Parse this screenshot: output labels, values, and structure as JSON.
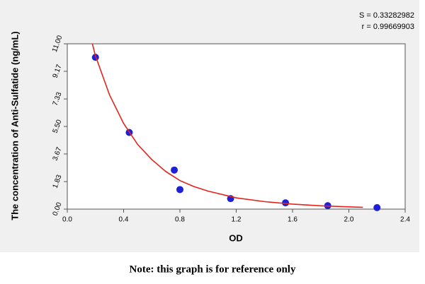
{
  "chart_data": {
    "type": "scatter",
    "x_label": "OD",
    "y_label": "The concentration of Anti-Sulfatide (ng/mL)",
    "annotations": [
      "S = 0.33282982",
      "r = 0.99669903"
    ],
    "xlim": [
      0,
      2.4
    ],
    "ylim": [
      0,
      11
    ],
    "xticks": [
      {
        "value": 0,
        "label": "0.0"
      },
      0.4,
      0.8,
      1.2,
      1.6,
      {
        "value": 2,
        "label": "2.0"
      },
      2.4
    ],
    "yticks": [
      {
        "value": 0,
        "label": "0.00"
      },
      1.83,
      3.67,
      {
        "value": 5.5,
        "label": "5.50"
      },
      7.33,
      9.17,
      {
        "value": 11,
        "label": "11.00"
      }
    ],
    "grid": false,
    "series": [
      {
        "mode": "markers",
        "color": "#1f1fd6",
        "x": [
          0.2,
          0.44,
          0.76,
          0.8,
          1.16,
          1.55,
          1.85,
          2.2
        ],
        "values": [
          10.1,
          5.1,
          2.6,
          1.3,
          0.7,
          0.42,
          0.23,
          0.1
        ]
      },
      {
        "mode": "line",
        "color": "#e3241b",
        "x": [
          0.17,
          0.2,
          0.3,
          0.4,
          0.5,
          0.6,
          0.7,
          0.8,
          0.9,
          1.0,
          1.2,
          1.4,
          1.6,
          1.8,
          2.0,
          2.1
        ],
        "values": [
          11.3,
          10.2,
          7.6,
          5.7,
          4.3,
          3.3,
          2.5,
          1.9,
          1.5,
          1.2,
          0.75,
          0.5,
          0.33,
          0.22,
          0.15,
          0.12
        ]
      }
    ]
  },
  "note": "Note: this graph is for reference only"
}
